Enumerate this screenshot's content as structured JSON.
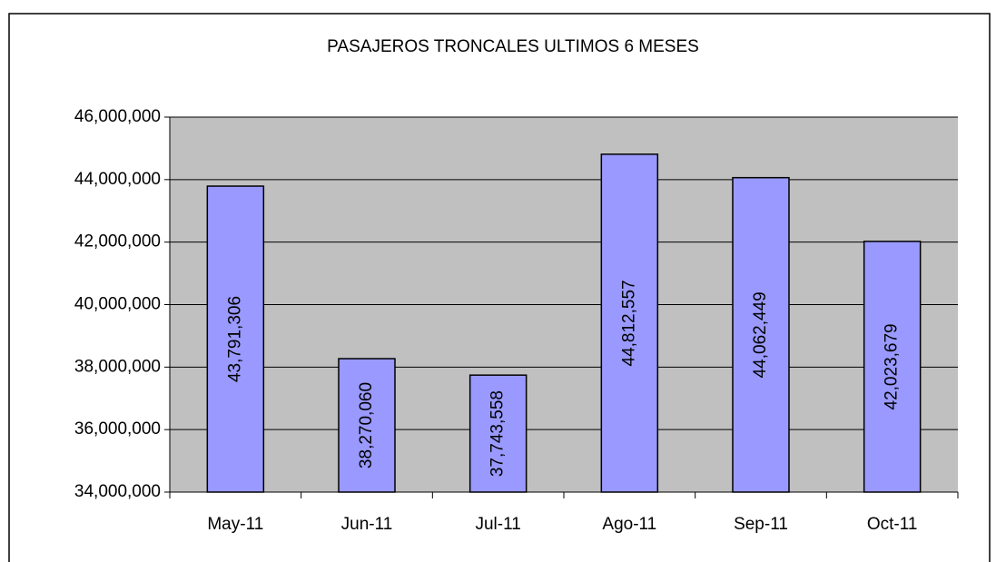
{
  "chart_data": {
    "type": "bar",
    "title": "PASAJEROS TRONCALES ULTIMOS 6 MESES",
    "categories": [
      "May-11",
      "Jun-11",
      "Jul-11",
      "Ago-11",
      "Sep-11",
      "Oct-11"
    ],
    "values": [
      43791306,
      38270060,
      37743558,
      44812557,
      44062449,
      42023679
    ],
    "value_labels": [
      "43,791,306",
      "38,270,060",
      "37,743,558",
      "44,812,557",
      "44,062,449",
      "42,023,679"
    ],
    "color": "#9999ff",
    "ylim": [
      34000000,
      46000000
    ],
    "yticks": [
      {
        "value": 34000000,
        "label": "34,000,000"
      },
      {
        "value": 36000000,
        "label": "36,000,000"
      },
      {
        "value": 38000000,
        "label": "38,000,000"
      },
      {
        "value": 40000000,
        "label": "40,000,000"
      },
      {
        "value": 42000000,
        "label": "42,000,000"
      },
      {
        "value": 44000000,
        "label": "44,000,000"
      },
      {
        "value": 46000000,
        "label": "46,000,000"
      }
    ],
    "grid": true
  }
}
